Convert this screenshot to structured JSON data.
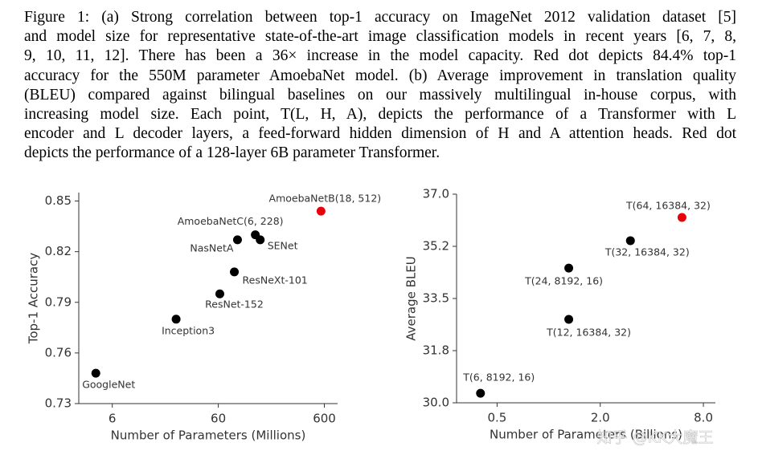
{
  "caption": [
    "Figure 1: (a) Strong correlation between top-1 accuracy on ImageNet 2012 validation dataset [5]",
    "and model size for representative state-of-the-art image classification models in recent years [6, 7, 8,",
    "9, 10, 11, 12]. There has been a 36× increase in the model capacity. Red dot depicts 84.4% top-1",
    "accuracy for the 550M parameter AmoebaNet model. (b) Average improvement in translation quality",
    "(BLEU) compared against bilingual baselines on our massively multilingual in-house corpus, with",
    "increasing model size. Each point, T(L, H, A), depicts the performance of a Transformer with L",
    "encoder and L decoder layers, a feed-forward hidden dimension of H and A attention heads. Red dot",
    "depicts the performance of a 128-layer 6B parameter Transformer."
  ],
  "watermark": "知乎 @KK大魔王",
  "chart_data": [
    {
      "type": "scatter",
      "x_label": "Number of Parameters (Millions)",
      "y_label": "Top-1 Accuracy",
      "x_scale": "log",
      "xlim": [
        2.9,
        800
      ],
      "xticks": [
        6,
        60,
        600
      ],
      "ylim": [
        0.73,
        0.855
      ],
      "yticks": [
        0.73,
        0.76,
        0.79,
        0.82,
        0.85
      ],
      "labels": [
        "GoogleNet",
        "Inception3",
        "ResNet-152",
        "ResNeXt-101",
        "NasNetA",
        "AmoebaNetC(6, 228)",
        "SENet",
        "AmoebaNetB(18, 512)"
      ],
      "x": [
        4.2,
        24,
        62,
        85,
        91,
        134,
        149,
        558
      ],
      "values": [
        0.748,
        0.78,
        0.795,
        0.808,
        0.827,
        0.83,
        0.827,
        0.844
      ],
      "colors": [
        "#000000",
        "#000000",
        "#000000",
        "#000000",
        "#000000",
        "#000000",
        "#000000",
        "#e8000b"
      ]
    },
    {
      "type": "scatter",
      "x_label": "Number of Parameters (Billions)",
      "y_label": "Average BLEU",
      "x_scale": "log",
      "xlim": [
        0.29,
        9.4
      ],
      "xticks": [
        0.5,
        {
          "value": 2,
          "label": "2.0"
        },
        {
          "value": 8,
          "label": "8.0"
        }
      ],
      "ylim": [
        30,
        37
      ],
      "yticks": [
        {
          "value": 30,
          "label": "30.0"
        },
        {
          "value": 31.75,
          "label": "31.8"
        },
        33.5,
        {
          "value": 35.25,
          "label": "35.2"
        },
        {
          "value": 37,
          "label": "37.0"
        }
      ],
      "labels": [
        "T(6, 8192, 16)",
        "T(12, 16384, 32)",
        "T(24, 8192, 16)",
        "T(32, 16384, 32)",
        "T(64, 16384, 32)"
      ],
      "x": [
        0.4,
        1.31,
        1.31,
        3.0,
        6.0
      ],
      "values": [
        30.32,
        32.8,
        34.52,
        35.44,
        36.22
      ],
      "colors": [
        "#000000",
        "#000000",
        "#000000",
        "#000000",
        "#e8000b"
      ]
    }
  ]
}
